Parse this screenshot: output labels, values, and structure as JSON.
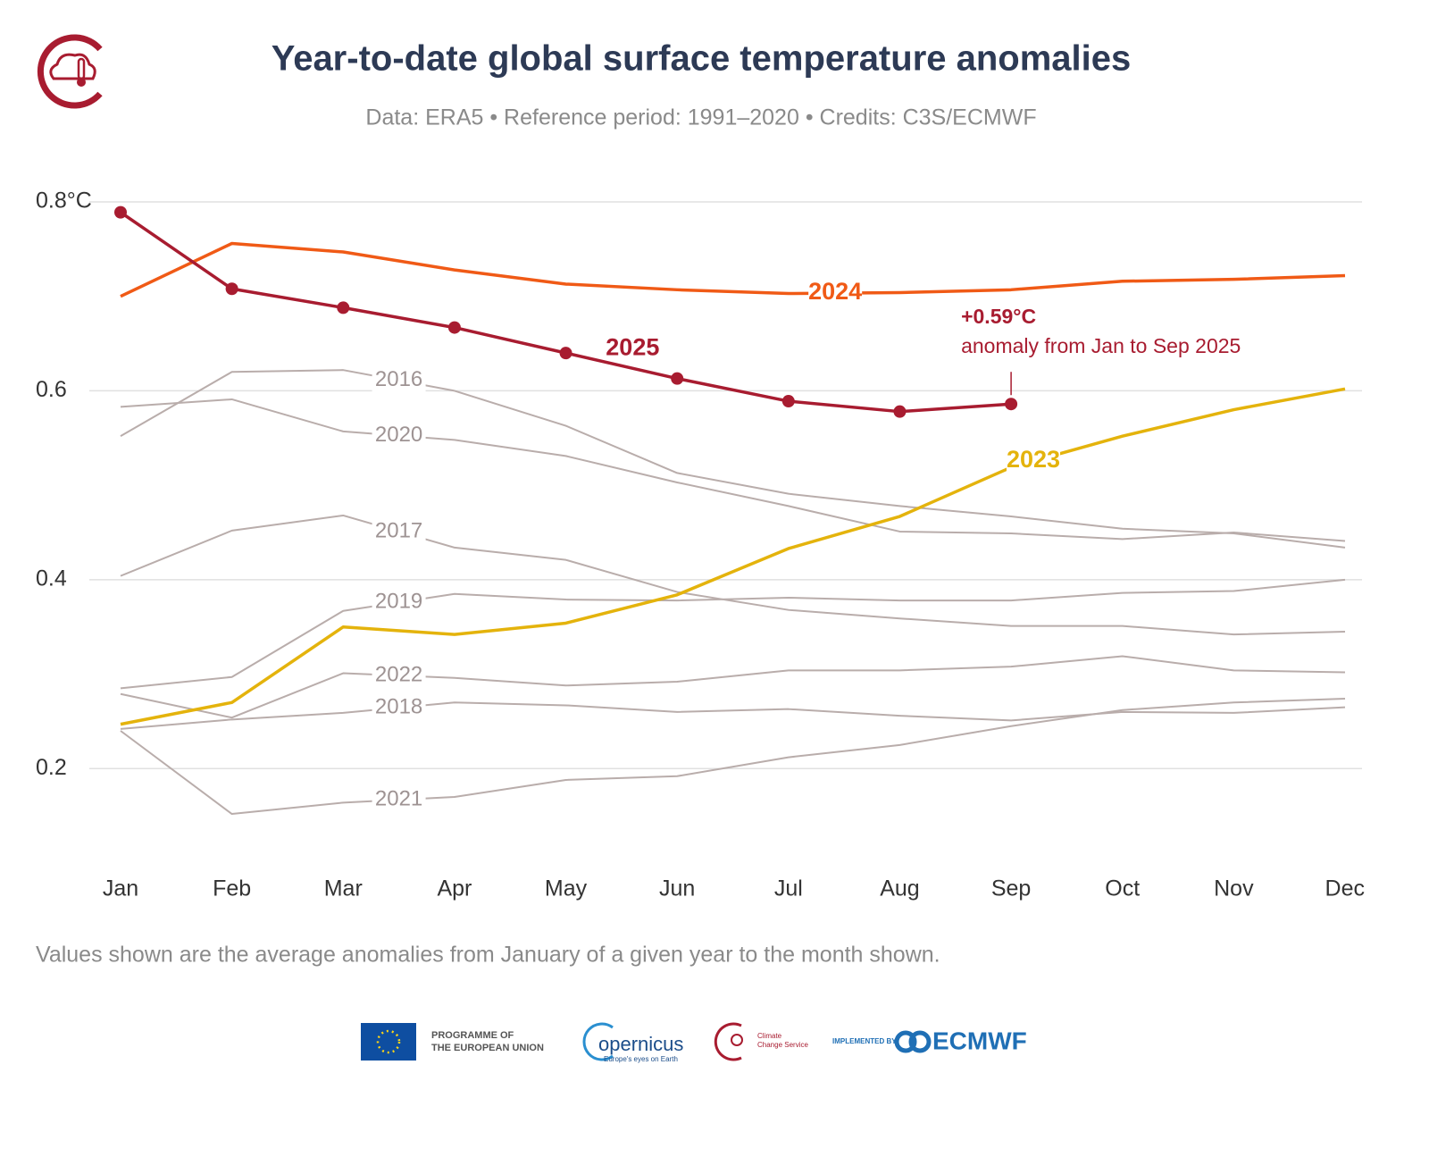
{
  "chart_data": {
    "type": "line",
    "title": "Year-to-date global surface temperature anomalies",
    "subtitle": "Data: ERA5 • Reference period: 1991–2020 • Credits: C3S/ECMWF",
    "footnote": "Values shown are the average anomalies from January of a given year to the month shown.",
    "categories": [
      "Jan",
      "Feb",
      "Mar",
      "Apr",
      "May",
      "Jun",
      "Jul",
      "Aug",
      "Sep",
      "Oct",
      "Nov",
      "Dec"
    ],
    "ylim": [
      0.1,
      0.8
    ],
    "yticks": [
      0.2,
      0.4,
      0.6,
      {
        "value": 0.8,
        "label": "0.8°C"
      }
    ],
    "grid": true,
    "annotation": {
      "value": "+0.59°C",
      "text": "anomaly from Jan to Sep 2025"
    },
    "series": [
      {
        "name": "2016",
        "color": "#b9adab",
        "values": [
          0.552,
          0.62,
          0.622,
          0.6,
          0.563,
          0.513,
          0.491,
          0.478,
          0.467,
          0.454,
          0.449,
          0.434
        ]
      },
      {
        "name": "2020",
        "color": "#b9adab",
        "values": [
          0.583,
          0.591,
          0.557,
          0.548,
          0.531,
          0.503,
          0.478,
          0.451,
          0.449,
          0.443,
          0.45,
          0.441
        ]
      },
      {
        "name": "2017",
        "color": "#b9adab",
        "values": [
          0.404,
          0.452,
          0.468,
          0.434,
          0.421,
          0.387,
          0.368,
          0.359,
          0.351,
          0.351,
          0.342,
          0.345
        ]
      },
      {
        "name": "2019",
        "color": "#b9adab",
        "values": [
          0.285,
          0.297,
          0.367,
          0.385,
          0.379,
          0.378,
          0.381,
          0.378,
          0.378,
          0.386,
          0.388,
          0.4
        ]
      },
      {
        "name": "2022",
        "color": "#b9adab",
        "values": [
          0.279,
          0.254,
          0.301,
          0.296,
          0.288,
          0.292,
          0.304,
          0.304,
          0.308,
          0.319,
          0.304,
          0.302
        ]
      },
      {
        "name": "2018",
        "color": "#b9adab",
        "values": [
          0.242,
          0.252,
          0.259,
          0.27,
          0.267,
          0.26,
          0.263,
          0.256,
          0.251,
          0.26,
          0.259,
          0.265
        ]
      },
      {
        "name": "2021",
        "color": "#b9adab",
        "values": [
          0.24,
          0.152,
          0.164,
          0.17,
          0.188,
          0.192,
          0.212,
          0.225,
          0.245,
          0.262,
          0.27,
          0.274
        ]
      },
      {
        "name": "2023",
        "color": "#e4b30c",
        "values": [
          0.247,
          0.27,
          0.35,
          0.342,
          0.354,
          0.384,
          0.433,
          0.467,
          0.519,
          0.552,
          0.58,
          0.602
        ]
      },
      {
        "name": "2024",
        "color": "#f05a16",
        "values": [
          0.7,
          0.756,
          0.747,
          0.728,
          0.713,
          0.707,
          0.703,
          0.704,
          0.707,
          0.716,
          0.718,
          0.722
        ]
      },
      {
        "name": "2025",
        "color": "#a81c30",
        "markers": true,
        "values": [
          0.789,
          0.708,
          0.688,
          0.667,
          0.64,
          0.613,
          0.589,
          0.578,
          0.586,
          null,
          null,
          null
        ]
      }
    ]
  },
  "logos": {
    "eu": "PROGRAMME OF",
    "eu2": "THE EUROPEAN UNION",
    "copernicus": "opernicus",
    "copernicus_tag": "Europe's eyes on Earth",
    "c3s": "Climate",
    "c3s2": "Change Service",
    "implemented": "IMPLEMENTED BY",
    "ecmwf": "ECMWF"
  }
}
